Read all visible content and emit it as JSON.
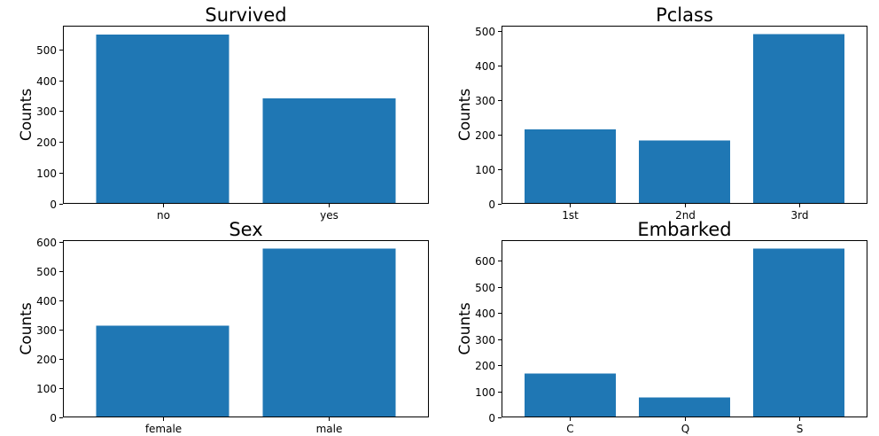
{
  "chart_data": [
    {
      "type": "bar",
      "title": "Survived",
      "xlabel": "",
      "ylabel": "Counts",
      "categories": [
        "no",
        "yes"
      ],
      "values": [
        549,
        342
      ],
      "ylim": [
        0,
        577
      ],
      "yticks": [
        0,
        100,
        200,
        300,
        400,
        500
      ],
      "color": "#1f77b4",
      "grid": false
    },
    {
      "type": "bar",
      "title": "Pclass",
      "xlabel": "",
      "ylabel": "Counts",
      "categories": [
        "1st",
        "2nd",
        "3rd"
      ],
      "values": [
        216,
        184,
        491
      ],
      "ylim": [
        0,
        516
      ],
      "yticks": [
        0,
        100,
        200,
        300,
        400,
        500
      ],
      "color": "#1f77b4",
      "grid": false
    },
    {
      "type": "bar",
      "title": "Sex",
      "xlabel": "",
      "ylabel": "Counts",
      "categories": [
        "female",
        "male"
      ],
      "values": [
        314,
        577
      ],
      "ylim": [
        0,
        606
      ],
      "yticks": [
        0,
        100,
        200,
        300,
        400,
        500,
        600
      ],
      "color": "#1f77b4",
      "grid": false
    },
    {
      "type": "bar",
      "title": "Embarked",
      "xlabel": "",
      "ylabel": "Counts",
      "categories": [
        "C",
        "Q",
        "S"
      ],
      "values": [
        168,
        77,
        646
      ],
      "ylim": [
        0,
        678
      ],
      "yticks": [
        0,
        100,
        200,
        300,
        400,
        500,
        600
      ],
      "color": "#1f77b4",
      "grid": false
    }
  ]
}
